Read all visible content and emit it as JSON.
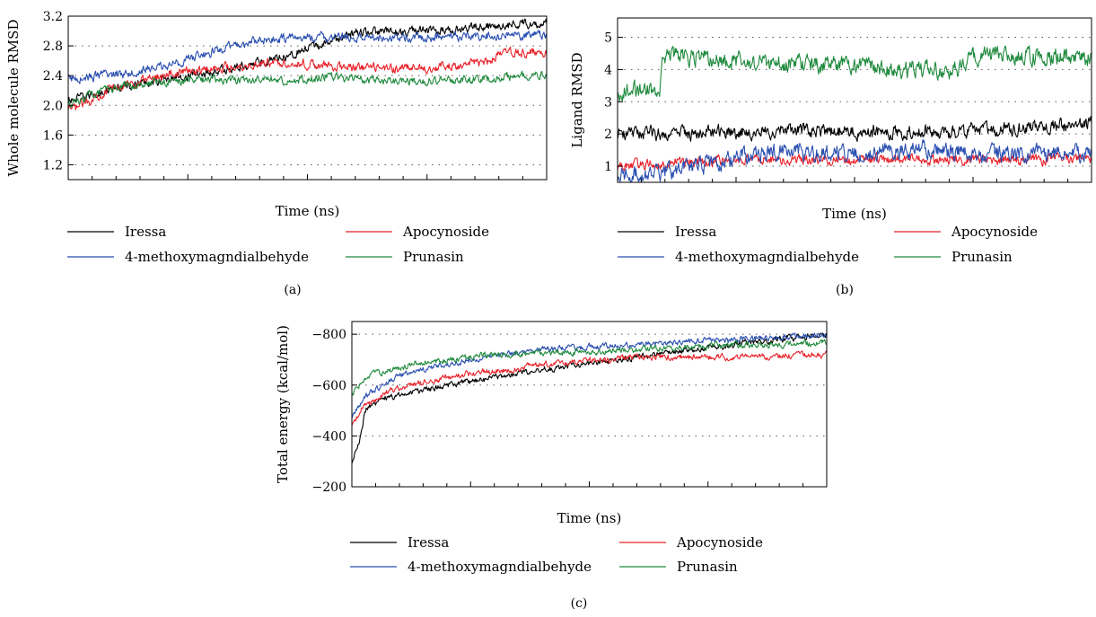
{
  "chart_data": [
    {
      "panel_label": "(a)",
      "type": "line",
      "xlabel": "Time (ns)",
      "ylabel": "Whole molecule RMSD",
      "ylim": [
        1.0,
        3.2
      ],
      "yticks": [
        "1.2",
        "1.6",
        "2.0",
        "2.4",
        "2.8",
        "3.2"
      ],
      "grid": "horizontal dotted",
      "legend": "below",
      "series": [
        {
          "name": "Iressa",
          "color": "#000000",
          "noise": 0.05,
          "trend": [
            [
              0,
              2.05
            ],
            [
              0.08,
              2.2
            ],
            [
              0.2,
              2.35
            ],
            [
              0.35,
              2.5
            ],
            [
              0.5,
              2.75
            ],
            [
              0.6,
              2.98
            ],
            [
              0.75,
              3.0
            ],
            [
              0.9,
              3.08
            ],
            [
              1,
              3.12
            ]
          ]
        },
        {
          "name": "Apocynoside",
          "color": "#e8222a",
          "noise": 0.05,
          "trend": [
            [
              0,
              1.92
            ],
            [
              0.08,
              2.2
            ],
            [
              0.2,
              2.42
            ],
            [
              0.3,
              2.5
            ],
            [
              0.45,
              2.58
            ],
            [
              0.6,
              2.5
            ],
            [
              0.75,
              2.5
            ],
            [
              0.88,
              2.58
            ],
            [
              0.9,
              2.7
            ],
            [
              1,
              2.7
            ]
          ]
        },
        {
          "name": "4-methoxymagndialbehyde",
          "color": "#2a4fb0",
          "noise": 0.05,
          "trend": [
            [
              0,
              2.35
            ],
            [
              0.1,
              2.42
            ],
            [
              0.2,
              2.52
            ],
            [
              0.3,
              2.72
            ],
            [
              0.4,
              2.88
            ],
            [
              0.5,
              2.92
            ],
            [
              0.65,
              2.9
            ],
            [
              0.8,
              2.92
            ],
            [
              1,
              2.95
            ]
          ]
        },
        {
          "name": "Prunasin",
          "color": "#1f8a3d",
          "noise": 0.045,
          "trend": [
            [
              0,
              2.0
            ],
            [
              0.05,
              2.15
            ],
            [
              0.15,
              2.3
            ],
            [
              0.3,
              2.35
            ],
            [
              0.45,
              2.33
            ],
            [
              0.55,
              2.38
            ],
            [
              0.7,
              2.32
            ],
            [
              0.85,
              2.35
            ],
            [
              1,
              2.42
            ]
          ]
        }
      ]
    },
    {
      "panel_label": "(b)",
      "type": "line",
      "xlabel": "Time (ns)",
      "ylabel": "Ligand RMSD",
      "ylim": [
        0.5,
        5.6
      ],
      "yticks": [
        "1",
        "2",
        "3",
        "4",
        "5"
      ],
      "grid": "horizontal dotted",
      "legend": "below",
      "series": [
        {
          "name": "Iressa",
          "color": "#000000",
          "noise": 0.18,
          "trend": [
            [
              0,
              2.0
            ],
            [
              0.2,
              2.05
            ],
            [
              0.35,
              2.1
            ],
            [
              0.5,
              2.05
            ],
            [
              0.7,
              2.05
            ],
            [
              0.85,
              2.2
            ],
            [
              1,
              2.3
            ]
          ]
        },
        {
          "name": "Apocynoside",
          "color": "#e8222a",
          "noise": 0.13,
          "trend": [
            [
              0,
              1.0
            ],
            [
              0.1,
              1.1
            ],
            [
              0.3,
              1.2
            ],
            [
              0.5,
              1.2
            ],
            [
              0.7,
              1.2
            ],
            [
              0.85,
              1.2
            ],
            [
              1,
              1.25
            ]
          ]
        },
        {
          "name": "4-methoxymagndialbehyde",
          "color": "#2a4fb0",
          "noise": 0.22,
          "trend": [
            [
              0,
              0.7
            ],
            [
              0.1,
              0.8
            ],
            [
              0.2,
              1.1
            ],
            [
              0.3,
              1.4
            ],
            [
              0.5,
              1.4
            ],
            [
              0.65,
              1.5
            ],
            [
              0.8,
              1.35
            ],
            [
              1,
              1.4
            ]
          ]
        },
        {
          "name": "Prunasin",
          "color": "#1f8a3d",
          "noise": 0.22,
          "trend": [
            [
              0,
              3.3
            ],
            [
              0.09,
              3.4
            ],
            [
              0.095,
              4.5
            ],
            [
              0.3,
              4.2
            ],
            [
              0.5,
              4.15
            ],
            [
              0.6,
              4.0
            ],
            [
              0.72,
              4.0
            ],
            [
              0.75,
              4.4
            ],
            [
              1,
              4.4
            ]
          ]
        }
      ]
    },
    {
      "panel_label": "(c)",
      "type": "line",
      "xlabel": "Time (ns)",
      "ylabel": "Total energy (kcal/mol)",
      "ylim": [
        -850,
        -200
      ],
      "yinverted": true,
      "yticks": [
        "−800",
        "−600",
        "−400",
        "−200"
      ],
      "grid": "horizontal dotted",
      "legend": "below",
      "series": [
        {
          "name": "Iressa",
          "color": "#000000",
          "noise": 10,
          "trend": [
            [
              0,
              -290
            ],
            [
              0.015,
              -380
            ],
            [
              0.03,
              -510
            ],
            [
              0.07,
              -550
            ],
            [
              0.2,
              -600
            ],
            [
              0.4,
              -660
            ],
            [
              0.6,
              -710
            ],
            [
              0.8,
              -760
            ],
            [
              1,
              -800
            ]
          ]
        },
        {
          "name": "Apocynoside",
          "color": "#e8222a",
          "noise": 10,
          "trend": [
            [
              0,
              -440
            ],
            [
              0.02,
              -510
            ],
            [
              0.08,
              -580
            ],
            [
              0.2,
              -630
            ],
            [
              0.4,
              -680
            ],
            [
              0.6,
              -710
            ],
            [
              0.8,
              -710
            ],
            [
              1,
              -720
            ]
          ]
        },
        {
          "name": "4-methoxymagndialbehyde",
          "color": "#2a4fb0",
          "noise": 9,
          "trend": [
            [
              0,
              -470
            ],
            [
              0.03,
              -560
            ],
            [
              0.1,
              -640
            ],
            [
              0.25,
              -700
            ],
            [
              0.4,
              -740
            ],
            [
              0.6,
              -760
            ],
            [
              0.8,
              -780
            ],
            [
              1,
              -800
            ]
          ]
        },
        {
          "name": "Prunasin",
          "color": "#1f8a3d",
          "noise": 10,
          "trend": [
            [
              0,
              -560
            ],
            [
              0.04,
              -640
            ],
            [
              0.15,
              -690
            ],
            [
              0.3,
              -720
            ],
            [
              0.5,
              -730
            ],
            [
              0.7,
              -750
            ],
            [
              0.9,
              -760
            ],
            [
              1,
              -770
            ]
          ]
        }
      ]
    }
  ]
}
